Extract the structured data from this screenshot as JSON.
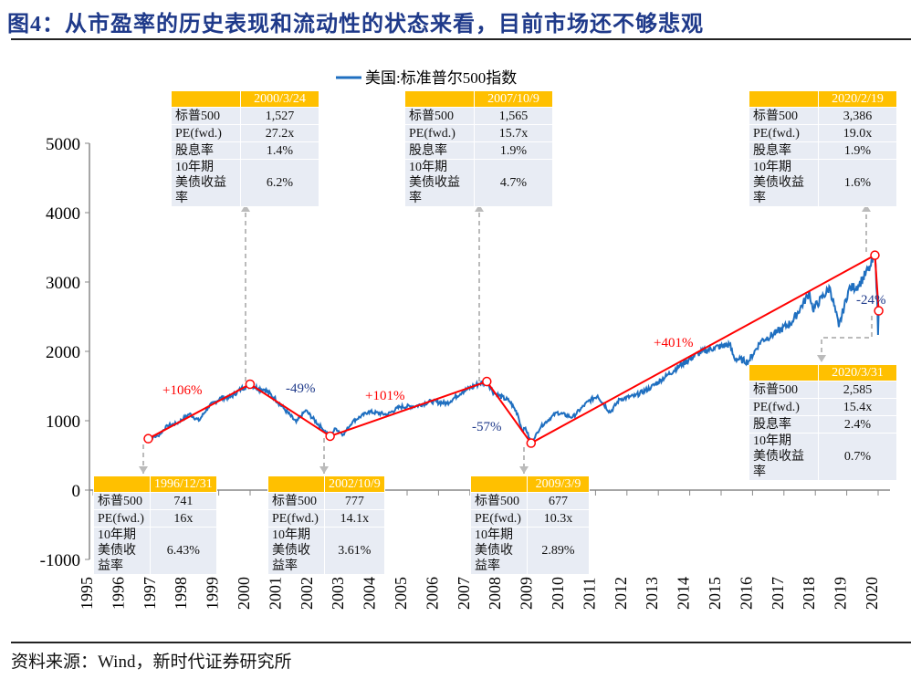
{
  "title": "图4：从市盈率的历史表现和流动性的状态来看，目前市场还不够悲观",
  "source": "资料来源：Wind，新时代证券研究所",
  "colors": {
    "series": "#1f6fc0",
    "trend": "#ff0000",
    "header": "#ffc000",
    "cell": "#e8ecf4",
    "negative": "#1f3a8a"
  },
  "chart_data": {
    "type": "line",
    "legend": "美国:标准普尔500指数",
    "legend_position": "top-center",
    "grid": false,
    "ylim": [
      -1000,
      5000
    ],
    "yticks": [
      -1000,
      0,
      1000,
      2000,
      3000,
      4000,
      5000
    ],
    "xlim": [
      1995,
      2020
    ],
    "xticks": [
      "1995",
      "1996",
      "1997",
      "1998",
      "1999",
      "2000",
      "2001",
      "2002",
      "2003",
      "2004",
      "2005",
      "2006",
      "2007",
      "2008",
      "2009",
      "2010",
      "2011",
      "2012",
      "2013",
      "2014",
      "2015",
      "2016",
      "2017",
      "2018",
      "2019",
      "2020"
    ],
    "series": [
      {
        "name": "美国:标准普尔500指数",
        "points": [
          [
            1996.95,
            741
          ],
          [
            1997.3,
            780
          ],
          [
            1997.6,
            930
          ],
          [
            1997.9,
            960
          ],
          [
            1998.3,
            1100
          ],
          [
            1998.6,
            1000
          ],
          [
            1998.9,
            1200
          ],
          [
            1999.3,
            1330
          ],
          [
            1999.6,
            1340
          ],
          [
            1999.95,
            1460
          ],
          [
            2000.23,
            1527
          ],
          [
            2000.5,
            1460
          ],
          [
            2000.7,
            1450
          ],
          [
            2001.0,
            1330
          ],
          [
            2001.3,
            1180
          ],
          [
            2001.7,
            980
          ],
          [
            2002.0,
            1150
          ],
          [
            2002.5,
            900
          ],
          [
            2002.78,
            777
          ],
          [
            2002.95,
            890
          ],
          [
            2003.2,
            800
          ],
          [
            2003.5,
            990
          ],
          [
            2004.0,
            1130
          ],
          [
            2004.6,
            1090
          ],
          [
            2005.0,
            1200
          ],
          [
            2005.5,
            1210
          ],
          [
            2006.0,
            1280
          ],
          [
            2006.5,
            1250
          ],
          [
            2007.0,
            1420
          ],
          [
            2007.5,
            1530
          ],
          [
            2007.77,
            1565
          ],
          [
            2008.0,
            1400
          ],
          [
            2008.5,
            1280
          ],
          [
            2008.75,
            1100
          ],
          [
            2008.9,
            850
          ],
          [
            2009.0,
            900
          ],
          [
            2009.18,
            677
          ],
          [
            2009.5,
            920
          ],
          [
            2010.0,
            1120
          ],
          [
            2010.5,
            1050
          ],
          [
            2011.0,
            1280
          ],
          [
            2011.3,
            1360
          ],
          [
            2011.7,
            1120
          ],
          [
            2012.0,
            1310
          ],
          [
            2012.5,
            1360
          ],
          [
            2013.0,
            1480
          ],
          [
            2013.5,
            1650
          ],
          [
            2014.0,
            1820
          ],
          [
            2014.5,
            1970
          ],
          [
            2015.0,
            2050
          ],
          [
            2015.5,
            2100
          ],
          [
            2015.65,
            1900
          ],
          [
            2016.1,
            1850
          ],
          [
            2016.5,
            2150
          ],
          [
            2017.0,
            2270
          ],
          [
            2017.5,
            2430
          ],
          [
            2018.05,
            2850
          ],
          [
            2018.15,
            2600
          ],
          [
            2018.7,
            2920
          ],
          [
            2018.98,
            2350
          ],
          [
            2019.3,
            2900
          ],
          [
            2019.6,
            2950
          ],
          [
            2020.0,
            3230
          ],
          [
            2020.13,
            3386
          ],
          [
            2020.2,
            2800
          ],
          [
            2020.23,
            2237
          ],
          [
            2020.25,
            2585
          ]
        ]
      }
    ],
    "trend_points": [
      [
        1996.99,
        741
      ],
      [
        2000.23,
        1527
      ],
      [
        2002.78,
        777
      ],
      [
        2007.77,
        1565
      ],
      [
        2009.18,
        677
      ],
      [
        2020.13,
        3386
      ],
      [
        2020.25,
        2585
      ]
    ],
    "annotations": [
      {
        "text": "+106%",
        "type": "rise"
      },
      {
        "text": "-49%",
        "type": "fall"
      },
      {
        "text": "+101%",
        "type": "rise"
      },
      {
        "text": "-57%",
        "type": "fall"
      },
      {
        "text": "+401%",
        "type": "rise"
      },
      {
        "text": "-24%",
        "type": "fall"
      }
    ],
    "tables": [
      {
        "date": "1996/12/31",
        "rows": [
          [
            "标普500",
            "741"
          ],
          [
            "PE(fwd.)",
            "16x"
          ],
          [
            "10年期美债收益率",
            "6.43%"
          ]
        ]
      },
      {
        "date": "2000/3/24",
        "rows": [
          [
            "标普500",
            "1,527"
          ],
          [
            "PE(fwd.)",
            "27.2x"
          ],
          [
            "股息率",
            "1.4%"
          ],
          [
            "10年期美债收益率",
            "6.2%"
          ]
        ]
      },
      {
        "date": "2002/10/9",
        "rows": [
          [
            "标普500",
            "777"
          ],
          [
            "PE(fwd.)",
            "14.1x"
          ],
          [
            "10年期美债收益率",
            "3.61%"
          ]
        ]
      },
      {
        "date": "2007/10/9",
        "rows": [
          [
            "标普500",
            "1,565"
          ],
          [
            "PE(fwd.)",
            "15.7x"
          ],
          [
            "股息率",
            "1.9%"
          ],
          [
            "10年期美债收益率",
            "4.7%"
          ]
        ]
      },
      {
        "date": "2009/3/9",
        "rows": [
          [
            "标普500",
            "677"
          ],
          [
            "PE(fwd.)",
            "10.3x"
          ],
          [
            "10年期美债收益率",
            "2.89%"
          ]
        ]
      },
      {
        "date": "2020/2/19",
        "rows": [
          [
            "标普500",
            "3,386"
          ],
          [
            "PE(fwd.)",
            "19.0x"
          ],
          [
            "股息率",
            "1.9%"
          ],
          [
            "10年期美债收益率",
            "1.6%"
          ]
        ]
      },
      {
        "date": "2020/3/31",
        "rows": [
          [
            "标普500",
            "2,585"
          ],
          [
            "PE(fwd.)",
            "15.4x"
          ],
          [
            "股息率",
            "2.4%"
          ],
          [
            "10年期美债收益率",
            "0.7%"
          ]
        ]
      }
    ]
  }
}
